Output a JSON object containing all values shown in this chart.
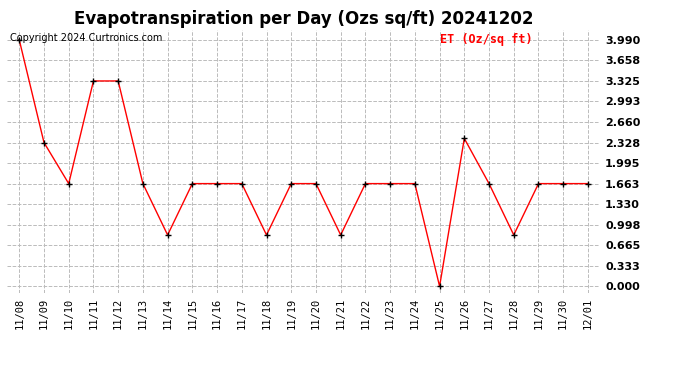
{
  "title": "Evapotranspiration per Day (Ozs sq/ft) 20241202",
  "copyright": "Copyright 2024 Curtronics.com",
  "legend_label": "ET (Oz/sq ft)",
  "dates": [
    "11/08",
    "11/09",
    "11/10",
    "11/11",
    "11/12",
    "11/13",
    "11/14",
    "11/15",
    "11/16",
    "11/17",
    "11/18",
    "11/19",
    "11/20",
    "11/21",
    "11/22",
    "11/23",
    "11/24",
    "11/25",
    "11/26",
    "11/27",
    "11/28",
    "11/29",
    "11/30",
    "12/01"
  ],
  "values": [
    3.99,
    2.328,
    1.663,
    3.325,
    3.325,
    1.663,
    0.831,
    1.663,
    1.663,
    1.663,
    0.831,
    1.663,
    1.663,
    0.831,
    1.663,
    1.663,
    1.663,
    0.0,
    2.394,
    1.663,
    0.831,
    1.663,
    1.663,
    1.663
  ],
  "yticks": [
    0.0,
    0.333,
    0.665,
    0.998,
    1.33,
    1.663,
    1.995,
    2.328,
    2.66,
    2.993,
    3.325,
    3.658,
    3.99
  ],
  "ylim": [
    -0.1,
    4.15
  ],
  "line_color": "#ff0000",
  "marker_color": "#000000",
  "marker": "+",
  "grid_color": "#bbbbbb",
  "bg_color": "#ffffff",
  "title_fontsize": 12,
  "tick_fontsize": 7.5,
  "ytick_fontsize": 8,
  "legend_color": "#ff0000",
  "copyright_color": "#000000",
  "copyright_fontsize": 7
}
